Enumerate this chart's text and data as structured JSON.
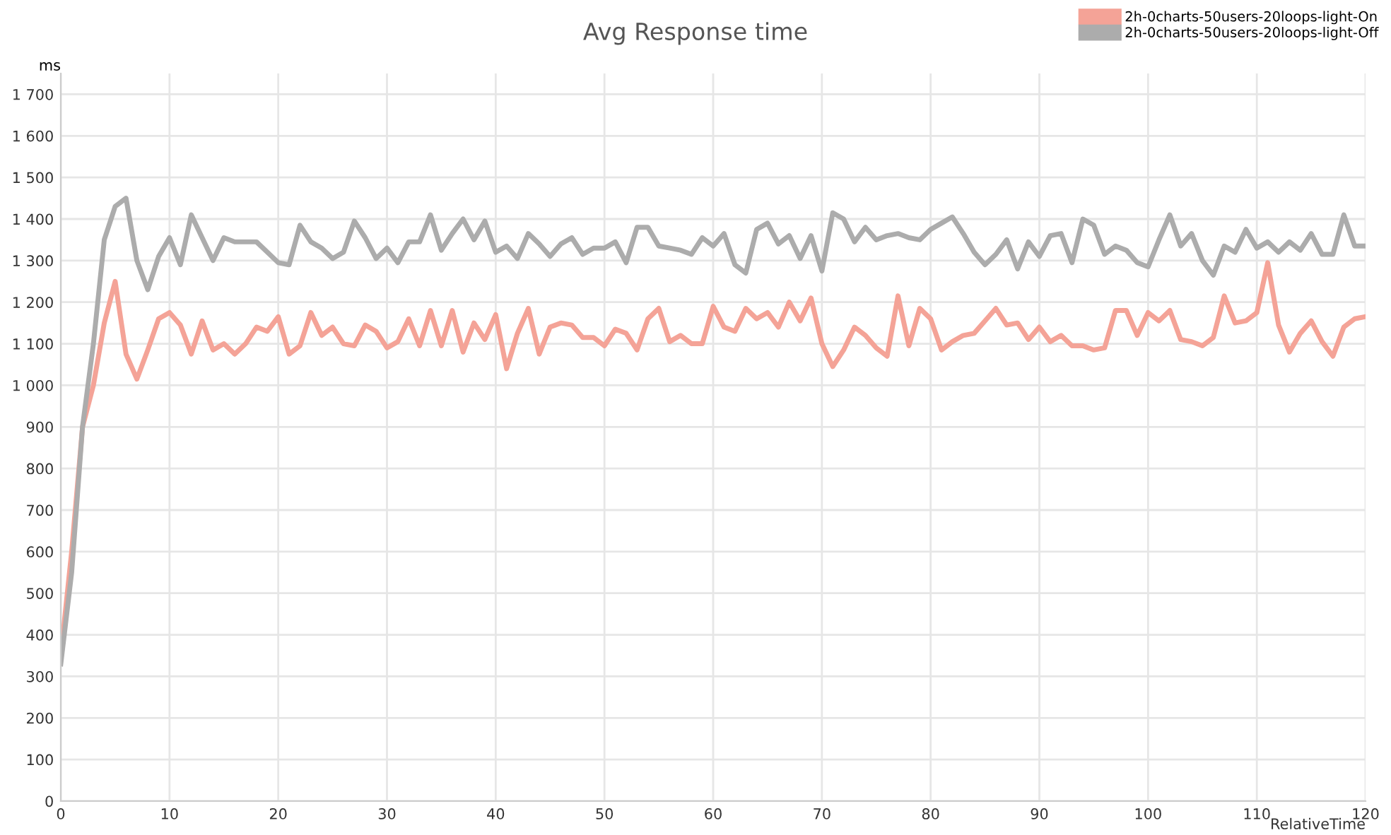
{
  "chart_data": {
    "type": "line",
    "title": "Avg Response time",
    "ylabel": "ms",
    "xlabel": "RelativeTime",
    "x": [
      0,
      1,
      2,
      3,
      4,
      5,
      6,
      7,
      8,
      9,
      10,
      11,
      12,
      13,
      14,
      15,
      16,
      17,
      18,
      19,
      20,
      21,
      22,
      23,
      24,
      25,
      26,
      27,
      28,
      29,
      30,
      31,
      32,
      33,
      34,
      35,
      36,
      37,
      38,
      39,
      40,
      41,
      42,
      43,
      44,
      45,
      46,
      47,
      48,
      49,
      50,
      51,
      52,
      53,
      54,
      55,
      56,
      57,
      58,
      59,
      60,
      61,
      62,
      63,
      64,
      65,
      66,
      67,
      68,
      69,
      70,
      71,
      72,
      73,
      74,
      75,
      76,
      77,
      78,
      79,
      80,
      81,
      82,
      83,
      84,
      85,
      86,
      87,
      88,
      89,
      90,
      91,
      92,
      93,
      94,
      95,
      96,
      97,
      98,
      99,
      100,
      101,
      102,
      103,
      104,
      105,
      106,
      107,
      108,
      109,
      110,
      111,
      112,
      113,
      114,
      115,
      116,
      117,
      118,
      119,
      120
    ],
    "series": [
      {
        "name": "2h-0charts-50users-20loops-light-On",
        "color": "#f4a397",
        "values": [
          350,
          600,
          900,
          1000,
          1150,
          1250,
          1075,
          1015,
          1085,
          1160,
          1175,
          1145,
          1075,
          1155,
          1085,
          1100,
          1075,
          1100,
          1140,
          1130,
          1165,
          1075,
          1095,
          1175,
          1120,
          1140,
          1100,
          1095,
          1145,
          1130,
          1090,
          1105,
          1160,
          1095,
          1180,
          1095,
          1180,
          1080,
          1150,
          1110,
          1170,
          1040,
          1125,
          1185,
          1075,
          1140,
          1150,
          1145,
          1115,
          1115,
          1095,
          1135,
          1125,
          1085,
          1160,
          1185,
          1105,
          1120,
          1100,
          1100,
          1190,
          1140,
          1130,
          1185,
          1160,
          1175,
          1140,
          1200,
          1155,
          1210,
          1100,
          1045,
          1085,
          1140,
          1120,
          1090,
          1070,
          1215,
          1095,
          1185,
          1160,
          1085,
          1105,
          1120,
          1125,
          1155,
          1185,
          1145,
          1150,
          1110,
          1140,
          1105,
          1120,
          1095,
          1095,
          1085,
          1090,
          1180,
          1180,
          1120,
          1175,
          1155,
          1180,
          1110,
          1105,
          1095,
          1115,
          1215,
          1150,
          1155,
          1175,
          1295,
          1145,
          1080,
          1125,
          1155,
          1105,
          1070,
          1140,
          1160,
          1165
        ]
      },
      {
        "name": "2h-0charts-50users-20loops-light-Off",
        "color": "#acacac",
        "values": [
          330,
          550,
          900,
          1100,
          1350,
          1430,
          1450,
          1300,
          1230,
          1310,
          1355,
          1290,
          1410,
          1355,
          1300,
          1355,
          1345,
          1345,
          1345,
          1320,
          1295,
          1290,
          1385,
          1345,
          1330,
          1305,
          1320,
          1395,
          1355,
          1305,
          1330,
          1295,
          1345,
          1345,
          1410,
          1325,
          1365,
          1400,
          1350,
          1395,
          1320,
          1335,
          1305,
          1365,
          1340,
          1310,
          1340,
          1355,
          1315,
          1330,
          1330,
          1345,
          1295,
          1380,
          1380,
          1335,
          1330,
          1325,
          1315,
          1355,
          1335,
          1365,
          1290,
          1270,
          1375,
          1390,
          1340,
          1360,
          1305,
          1360,
          1275,
          1415,
          1400,
          1345,
          1380,
          1350,
          1360,
          1365,
          1355,
          1350,
          1375,
          1390,
          1405,
          1365,
          1320,
          1290,
          1315,
          1350,
          1280,
          1345,
          1310,
          1360,
          1365,
          1295,
          1400,
          1385,
          1315,
          1335,
          1325,
          1295,
          1285,
          1350,
          1410,
          1335,
          1365,
          1300,
          1265,
          1335,
          1320,
          1375,
          1330,
          1345,
          1320,
          1345,
          1325,
          1365,
          1315,
          1315,
          1410,
          1335,
          1335
        ]
      }
    ],
    "xlim": [
      0,
      120
    ],
    "xticks": [
      0,
      10,
      20,
      30,
      40,
      50,
      60,
      70,
      80,
      90,
      100,
      110,
      120
    ],
    "ylim": [
      0,
      1750
    ],
    "yticks": [
      0,
      100,
      200,
      300,
      400,
      500,
      600,
      700,
      800,
      900,
      {
        "value": 1000,
        "label": "1 000"
      },
      {
        "value": 1100,
        "label": "1 100"
      },
      {
        "value": 1200,
        "label": "1 200"
      },
      {
        "value": 1300,
        "label": "1 300"
      },
      {
        "value": 1400,
        "label": "1 400"
      },
      {
        "value": 1500,
        "label": "1 500"
      },
      {
        "value": 1600,
        "label": "1 600"
      },
      {
        "value": 1700,
        "label": "1 700"
      }
    ],
    "grid": true,
    "legend": "top right",
    "marker": "none",
    "line_style": "solid"
  }
}
